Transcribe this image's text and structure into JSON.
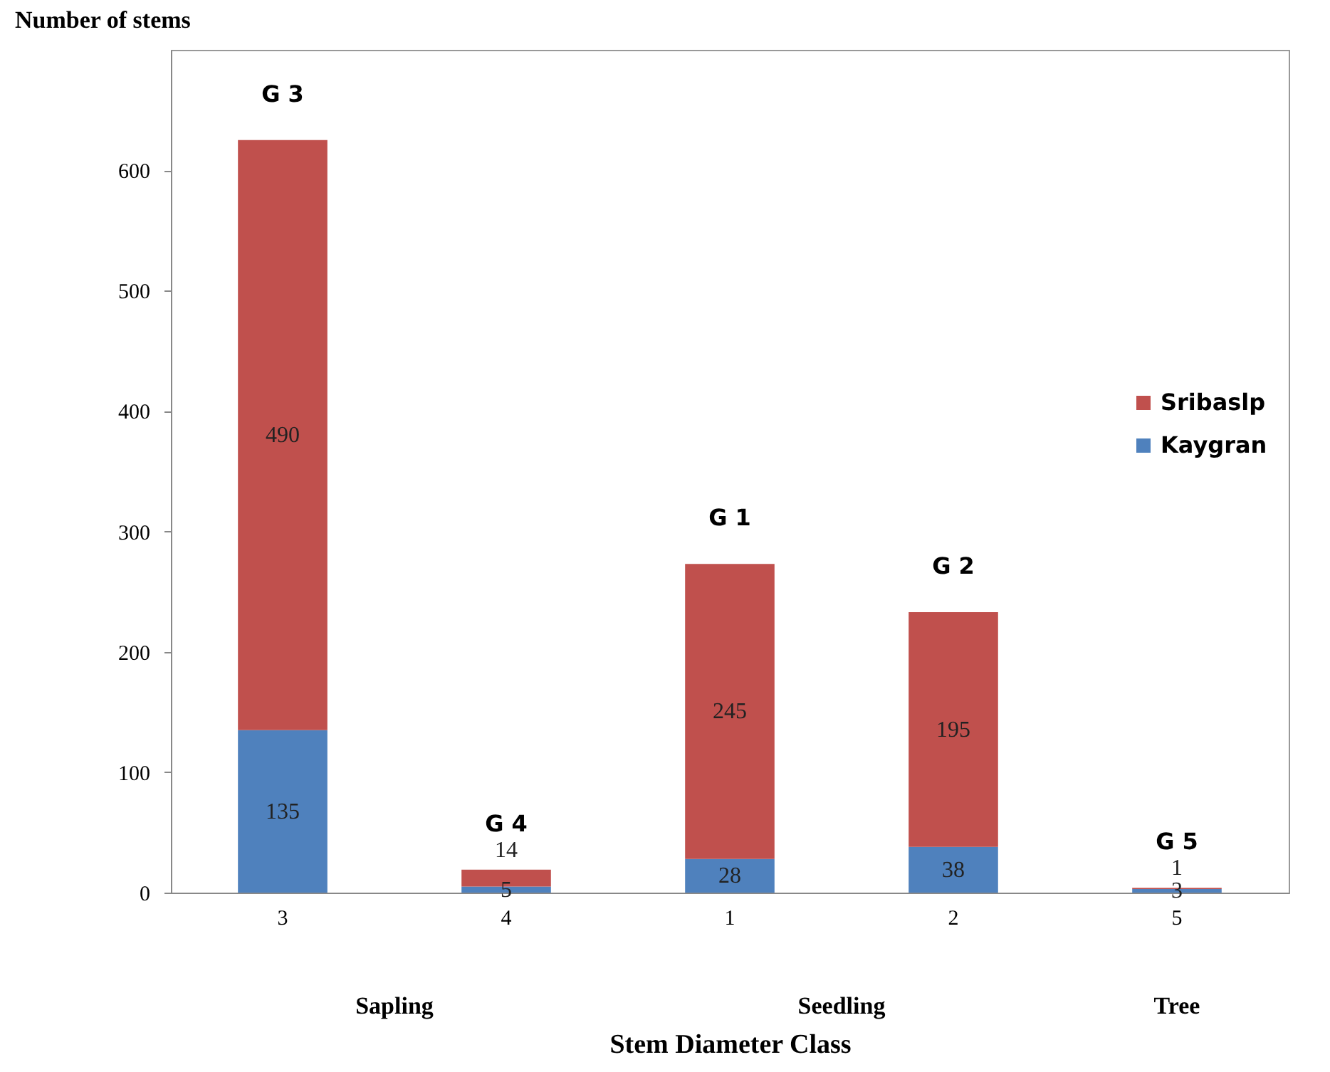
{
  "chart_data": {
    "type": "bar",
    "xlabel": "Stem Diameter Class",
    "ylabel": "Number of stems",
    "categories": [
      "3",
      "4",
      "1",
      "2",
      "5"
    ],
    "series": [
      {
        "name": "Kaygran",
        "color": "#4f81bd",
        "values": [
          135,
          5,
          28,
          38,
          3
        ]
      },
      {
        "name": "Sribaslp",
        "color": "#c0504d",
        "values": [
          490,
          14,
          245,
          195,
          1
        ]
      }
    ],
    "stacked": true,
    "data_labels": true,
    "ylim": [
      0,
      700
    ],
    "yticks": [
      0,
      100,
      200,
      300,
      400,
      500,
      600
    ],
    "grid": false,
    "legend": "right",
    "annotations": [
      {
        "text": "G 3",
        "x": "3",
        "y": 625
      },
      {
        "text": "G 4",
        "x": "4",
        "y": 19
      },
      {
        "text": "G 1",
        "x": "1",
        "y": 273
      },
      {
        "text": "G 2",
        "x": "2",
        "y": 233
      },
      {
        "text": "G 5",
        "x": "5",
        "y": 4
      },
      "Sapling",
      "Seedling",
      "Tree"
    ]
  }
}
